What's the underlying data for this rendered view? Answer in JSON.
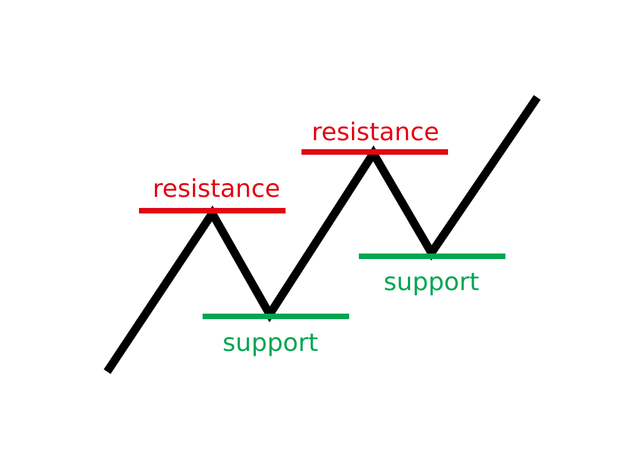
{
  "diagram": {
    "colors": {
      "price_line": "#000000",
      "resistance": "#e30613",
      "support": "#00a651"
    },
    "levels": [
      {
        "kind": "resistance",
        "label": "resistance"
      },
      {
        "kind": "support",
        "label": "support"
      },
      {
        "kind": "resistance",
        "label": "resistance"
      },
      {
        "kind": "support",
        "label": "support"
      }
    ]
  }
}
